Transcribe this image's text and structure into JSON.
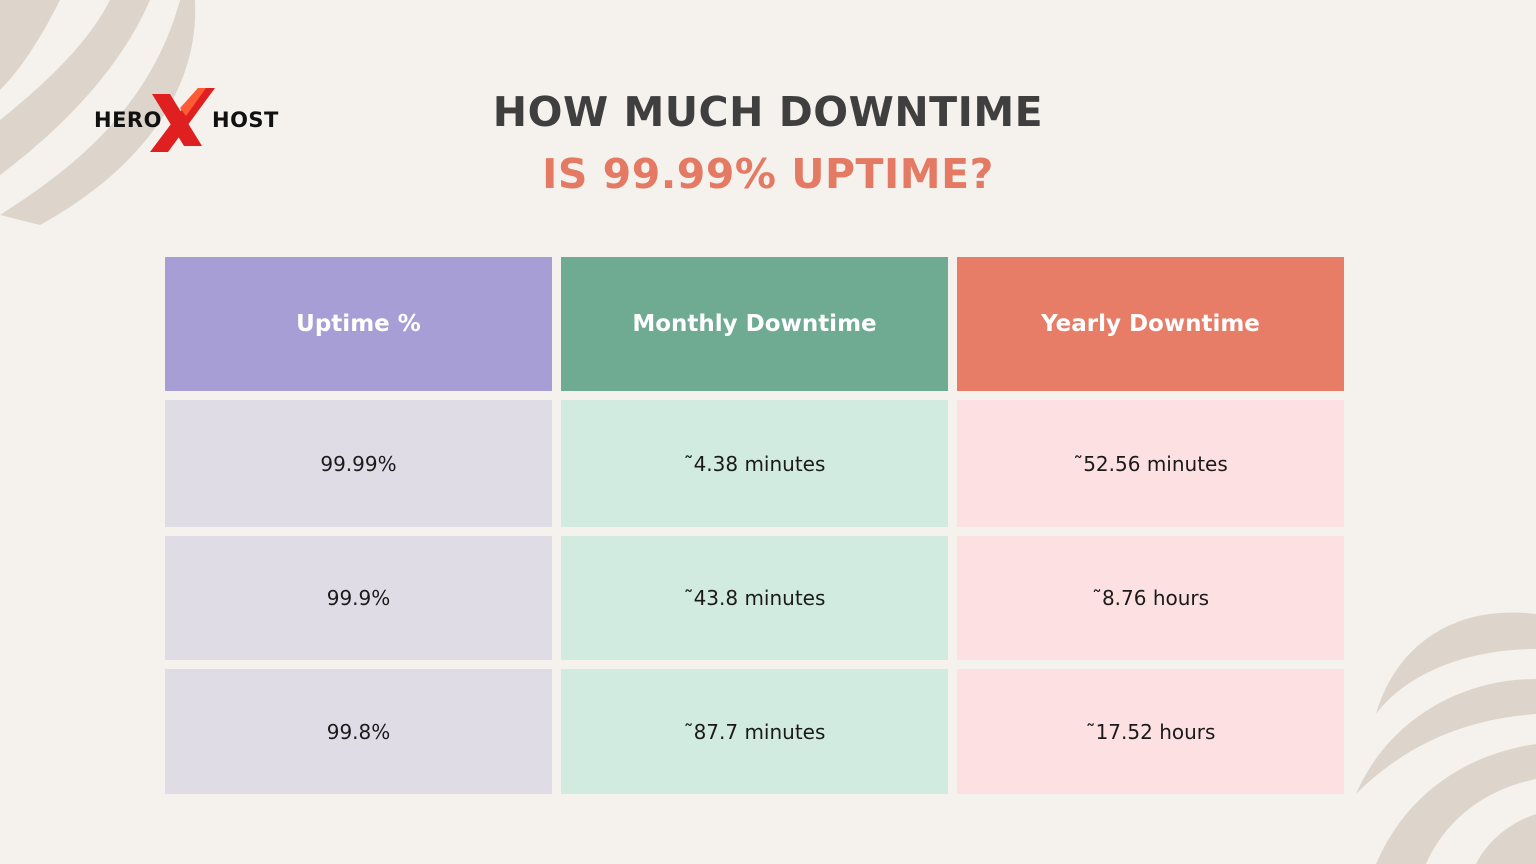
{
  "brand": {
    "logo_left": "HERO",
    "logo_right": "HOST",
    "accent_color": "#e02020"
  },
  "title": {
    "line1": "HOW MUCH DOWNTIME",
    "line2": "IS 99.99% UPTIME?"
  },
  "table": {
    "headers": [
      "Uptime %",
      "Monthly Downtime",
      "Yearly Downtime"
    ],
    "header_colors": [
      "#a69ed4",
      "#6fab93",
      "#e77c67"
    ],
    "rows": [
      [
        "99.99%",
        "˜4.38 minutes",
        "˜52.56 minutes"
      ],
      [
        "99.9%",
        "˜43.8 minutes",
        "˜8.76 hours"
      ],
      [
        "99.8%",
        "˜87.7 minutes",
        "˜17.52 hours"
      ]
    ]
  }
}
